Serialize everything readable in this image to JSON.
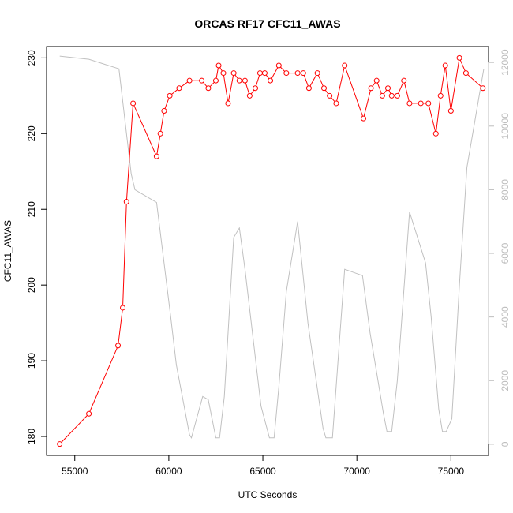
{
  "chart_data": {
    "type": "line",
    "title": "ORCAS RF17 CFC11_AWAS",
    "xlabel": "UTC Seconds",
    "ylabel": "CFC11_AWAS",
    "xlim": [
      53500,
      77000
    ],
    "ylim": [
      177.5,
      231.5
    ],
    "y2lim": [
      -350,
      12500
    ],
    "x_ticks": [
      55000,
      60000,
      65000,
      70000,
      75000
    ],
    "y_ticks": [
      180,
      190,
      200,
      210,
      220,
      230
    ],
    "y2_ticks": [
      0,
      2000,
      4000,
      6000,
      8000,
      10000,
      12000
    ],
    "grid": false,
    "series": [
      {
        "axis": "left",
        "color": "#ff0000",
        "marker": "open-circle",
        "x": [
          54200,
          55750,
          57300,
          57550,
          57750,
          58100,
          59350,
          59550,
          59750,
          60050,
          60550,
          61100,
          61750,
          62100,
          62500,
          62650,
          62900,
          63150,
          63450,
          63750,
          64050,
          64300,
          64600,
          64850,
          65100,
          65400,
          65850,
          66250,
          66850,
          67150,
          67450,
          67900,
          68250,
          68550,
          68900,
          69350,
          70350,
          70750,
          71050,
          71350,
          71650,
          71850,
          72150,
          72500,
          72800,
          73400,
          73800,
          74200,
          74450,
          74700,
          75000,
          75450,
          75800,
          76700
        ],
        "y": [
          179,
          183,
          192,
          197,
          211,
          224,
          217,
          220,
          223,
          225,
          226,
          227,
          227,
          226,
          227,
          229,
          228,
          224,
          228,
          227,
          227,
          225,
          226,
          228,
          228,
          227,
          229,
          228,
          228,
          228,
          226,
          228,
          226,
          225,
          224,
          229,
          222,
          226,
          227,
          225,
          226,
          225,
          225,
          227,
          224,
          224,
          224,
          220,
          225,
          229,
          223,
          230,
          228,
          226
        ]
      },
      {
        "axis": "right",
        "color": "#c0c0c0",
        "marker": "none",
        "x": [
          54200,
          55750,
          57350,
          58000,
          58200,
          59350,
          60100,
          60400,
          61100,
          61200,
          61800,
          62100,
          62500,
          62700,
          62950,
          63450,
          63750,
          64050,
          64900,
          65350,
          65600,
          65850,
          66250,
          66850,
          67400,
          68200,
          68350,
          68700,
          69350,
          70300,
          70700,
          71400,
          71600,
          71850,
          72150,
          72800,
          73650,
          73950,
          74350,
          74550,
          74750,
          75050,
          75450,
          75850,
          76750
        ],
        "y": [
          12200,
          12100,
          11800,
          8500,
          8000,
          7600,
          4000,
          2500,
          300,
          200,
          1500,
          1400,
          200,
          200,
          1500,
          6500,
          6800,
          5500,
          1200,
          200,
          200,
          1800,
          4800,
          7000,
          3800,
          500,
          200,
          200,
          5500,
          5300,
          3500,
          1000,
          400,
          400,
          2000,
          7300,
          5700,
          4000,
          1100,
          400,
          400,
          800,
          5000,
          8700,
          11800
        ]
      }
    ]
  }
}
